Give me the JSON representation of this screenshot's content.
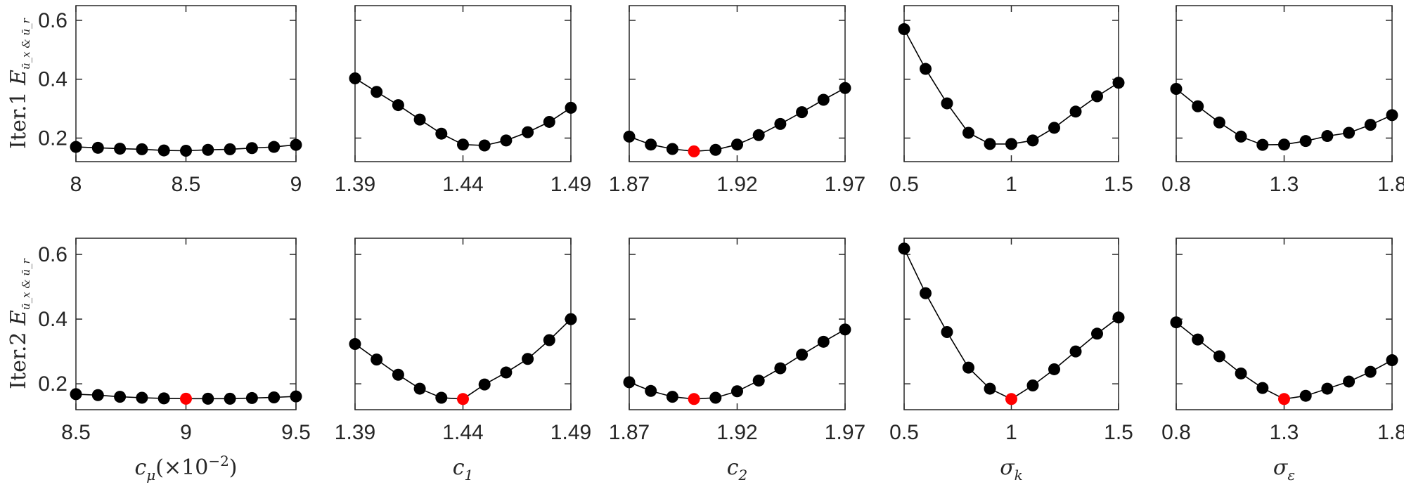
{
  "figure": {
    "rows": [
      {
        "label": "Iter.1",
        "ylabel_symbol": "E",
        "ylabel_subscript": "ū_x & ū_r"
      },
      {
        "label": "Iter.2",
        "ylabel_symbol": "E",
        "ylabel_subscript": "ū_x & ū_r"
      }
    ],
    "columns": [
      {
        "label": "c_μ(×10^-2)",
        "symbol": "c",
        "sub": "μ",
        "suffix": "(×10",
        "sup": "−2",
        "suffix_end": ")"
      },
      {
        "label": "c_1",
        "symbol": "c",
        "sub": "1"
      },
      {
        "label": "c_2",
        "symbol": "c",
        "sub": "2"
      },
      {
        "label": "σ_k",
        "symbol": "σ",
        "sub": "k"
      },
      {
        "label": "σ_ε",
        "symbol": "σ",
        "sub": "ε"
      }
    ],
    "colors": {
      "marker": "#000000",
      "highlight": "#ff0000",
      "line": "#000000",
      "axis": "#262626"
    }
  },
  "chart_data": [
    {
      "type": "line",
      "row": 0,
      "col": 0,
      "x": [
        8.0,
        8.1,
        8.2,
        8.3,
        8.4,
        8.5,
        8.6,
        8.7,
        8.8,
        8.9,
        9.0
      ],
      "y": [
        0.17,
        0.167,
        0.164,
        0.162,
        0.158,
        0.157,
        0.16,
        0.162,
        0.166,
        0.17,
        0.177
      ],
      "highlight_index": null,
      "xlim": [
        8,
        9
      ],
      "xticks": [
        "8",
        "8.5",
        "9"
      ],
      "ylim": [
        0.12,
        0.65
      ],
      "yticks": [
        "0.2",
        "0.4",
        "0.6"
      ]
    },
    {
      "type": "line",
      "row": 0,
      "col": 1,
      "x": [
        1.39,
        1.4,
        1.41,
        1.42,
        1.43,
        1.44,
        1.45,
        1.46,
        1.47,
        1.48,
        1.49
      ],
      "y": [
        0.403,
        0.357,
        0.312,
        0.263,
        0.215,
        0.178,
        0.175,
        0.192,
        0.22,
        0.255,
        0.303
      ],
      "highlight_index": null,
      "xlim": [
        1.39,
        1.49
      ],
      "xticks": [
        "1.39",
        "1.44",
        "1.49"
      ],
      "ylim": [
        0.12,
        0.65
      ],
      "yticks": []
    },
    {
      "type": "line",
      "row": 0,
      "col": 2,
      "x": [
        1.87,
        1.88,
        1.89,
        1.9,
        1.91,
        1.92,
        1.93,
        1.94,
        1.95,
        1.96,
        1.97
      ],
      "y": [
        0.205,
        0.178,
        0.163,
        0.155,
        0.16,
        0.178,
        0.21,
        0.248,
        0.288,
        0.33,
        0.37
      ],
      "highlight_index": 3,
      "xlim": [
        1.87,
        1.97
      ],
      "xticks": [
        "1.87",
        "1.92",
        "1.97"
      ],
      "ylim": [
        0.12,
        0.65
      ],
      "yticks": []
    },
    {
      "type": "line",
      "row": 0,
      "col": 3,
      "x": [
        0.5,
        0.6,
        0.7,
        0.8,
        0.9,
        1.0,
        1.1,
        1.2,
        1.3,
        1.4,
        1.5
      ],
      "y": [
        0.57,
        0.435,
        0.318,
        0.218,
        0.18,
        0.18,
        0.192,
        0.235,
        0.29,
        0.342,
        0.388
      ],
      "highlight_index": null,
      "xlim": [
        0.5,
        1.5
      ],
      "xticks": [
        "0.5",
        "1",
        "1.5"
      ],
      "ylim": [
        0.12,
        0.65
      ],
      "yticks": []
    },
    {
      "type": "line",
      "row": 0,
      "col": 4,
      "x": [
        0.8,
        0.9,
        1.0,
        1.1,
        1.2,
        1.3,
        1.4,
        1.5,
        1.6,
        1.7,
        1.8
      ],
      "y": [
        0.367,
        0.308,
        0.253,
        0.205,
        0.177,
        0.178,
        0.19,
        0.207,
        0.218,
        0.245,
        0.278
      ],
      "highlight_index": null,
      "xlim": [
        0.8,
        1.8
      ],
      "xticks": [
        "0.8",
        "1.3",
        "1.8"
      ],
      "ylim": [
        0.12,
        0.65
      ],
      "yticks": []
    },
    {
      "type": "line",
      "row": 1,
      "col": 0,
      "x": [
        8.5,
        8.6,
        8.7,
        8.8,
        8.9,
        9.0,
        9.1,
        9.2,
        9.3,
        9.4,
        9.5
      ],
      "y": [
        0.168,
        0.165,
        0.16,
        0.157,
        0.155,
        0.154,
        0.154,
        0.154,
        0.156,
        0.158,
        0.161
      ],
      "highlight_index": 5,
      "xlim": [
        8.5,
        9.5
      ],
      "xticks": [
        "8.5",
        "9",
        "9.5"
      ],
      "ylim": [
        0.12,
        0.65
      ],
      "yticks": [
        "0.2",
        "0.4",
        "0.6"
      ]
    },
    {
      "type": "line",
      "row": 1,
      "col": 1,
      "x": [
        1.39,
        1.4,
        1.41,
        1.42,
        1.43,
        1.44,
        1.45,
        1.46,
        1.47,
        1.48,
        1.49
      ],
      "y": [
        0.323,
        0.275,
        0.228,
        0.185,
        0.157,
        0.153,
        0.198,
        0.235,
        0.277,
        0.335,
        0.4
      ],
      "highlight_index": 5,
      "xlim": [
        1.39,
        1.49
      ],
      "xticks": [
        "1.39",
        "1.44",
        "1.49"
      ],
      "ylim": [
        0.12,
        0.65
      ],
      "yticks": []
    },
    {
      "type": "line",
      "row": 1,
      "col": 2,
      "x": [
        1.87,
        1.88,
        1.89,
        1.9,
        1.91,
        1.92,
        1.93,
        1.94,
        1.95,
        1.96,
        1.97
      ],
      "y": [
        0.205,
        0.178,
        0.16,
        0.153,
        0.157,
        0.177,
        0.21,
        0.248,
        0.29,
        0.33,
        0.368
      ],
      "highlight_index": 3,
      "xlim": [
        1.87,
        1.97
      ],
      "xticks": [
        "1.87",
        "1.92",
        "1.97"
      ],
      "ylim": [
        0.12,
        0.65
      ],
      "yticks": []
    },
    {
      "type": "line",
      "row": 1,
      "col": 3,
      "x": [
        0.5,
        0.6,
        0.7,
        0.8,
        0.9,
        1.0,
        1.1,
        1.2,
        1.3,
        1.4,
        1.5
      ],
      "y": [
        0.618,
        0.48,
        0.36,
        0.25,
        0.185,
        0.153,
        0.195,
        0.245,
        0.3,
        0.355,
        0.405
      ],
      "highlight_index": 5,
      "xlim": [
        0.5,
        1.5
      ],
      "xticks": [
        "0.5",
        "1",
        "1.5"
      ],
      "ylim": [
        0.12,
        0.65
      ],
      "yticks": []
    },
    {
      "type": "line",
      "row": 1,
      "col": 4,
      "x": [
        0.8,
        0.9,
        1.0,
        1.1,
        1.2,
        1.3,
        1.4,
        1.5,
        1.6,
        1.7,
        1.8
      ],
      "y": [
        0.39,
        0.337,
        0.285,
        0.232,
        0.187,
        0.153,
        0.163,
        0.185,
        0.207,
        0.237,
        0.273
      ],
      "highlight_index": 5,
      "xlim": [
        0.8,
        1.8
      ],
      "xticks": [
        "0.8",
        "1.3",
        "1.8"
      ],
      "ylim": [
        0.12,
        0.65
      ],
      "yticks": []
    }
  ]
}
